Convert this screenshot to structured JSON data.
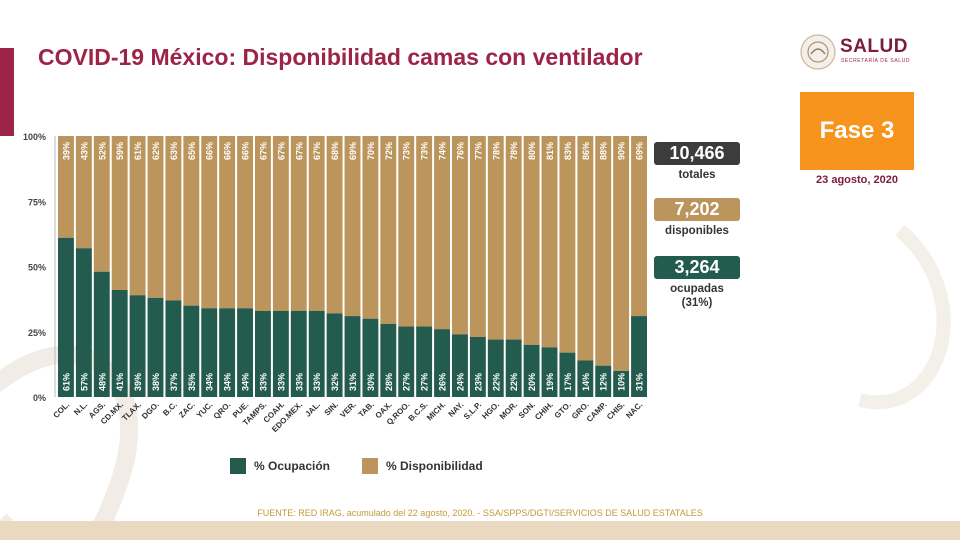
{
  "header": {
    "title": "COVID-19 México: Disponibilidad camas con ventilador",
    "logo_text": "SALUD",
    "logo_subtext": "SECRETARÍA DE SALUD"
  },
  "phase": {
    "label": "Fase 3",
    "date": "23 agosto, 2020"
  },
  "stats": {
    "total_value": "10,466",
    "total_label": "totales",
    "available_value": "7,202",
    "available_label": "disponibles",
    "occupied_value": "3,264",
    "occupied_label": "ocupadas",
    "occupied_pct": "(31%)"
  },
  "legend": {
    "occupied": "% Ocupación",
    "available": "% Disponibilidad"
  },
  "source": "FUENTE: RED IRAG, acumulado del 22 agosto, 2020. -  SSA/SPPS/DGTI/SERVICIOS DE SALUD ESTATALES",
  "colors": {
    "occupied": "#235b4e",
    "available": "#bc955c",
    "accent": "#9d2449",
    "phase": "#f7941d"
  },
  "chart_data": {
    "type": "bar",
    "stacked": true,
    "ylim": [
      0,
      100
    ],
    "yticks": [
      "0%",
      "25%",
      "50%",
      "75%",
      "100%"
    ],
    "categories": [
      "COL.",
      "N.L.",
      "AGS.",
      "CD.MX.",
      "TLAX.",
      "DGO.",
      "B.C.",
      "ZAC.",
      "YUC.",
      "QRO.",
      "PUE.",
      "TAMPS.",
      "COAH.",
      "EDO.MEX.",
      "JAL.",
      "SIN.",
      "VER.",
      "TAB.",
      "OAX.",
      "Q.ROO.",
      "B.C.S.",
      "MICH.",
      "NAY.",
      "S.L.P.",
      "HGO.",
      "MOR.",
      "SON.",
      "CHIH.",
      "GTO.",
      "GRO.",
      "CAMP.",
      "CHIS.",
      "NAC."
    ],
    "series": [
      {
        "name": "% Ocupación",
        "values": [
          61,
          57,
          48,
          41,
          39,
          38,
          37,
          35,
          34,
          34,
          34,
          33,
          33,
          33,
          33,
          32,
          31,
          30,
          28,
          27,
          27,
          26,
          24,
          23,
          22,
          22,
          20,
          19,
          17,
          14,
          12,
          10,
          31
        ]
      },
      {
        "name": "% Disponibilidad",
        "values": [
          39,
          43,
          52,
          59,
          61,
          62,
          63,
          65,
          66,
          66,
          66,
          67,
          67,
          67,
          67,
          68,
          69,
          70,
          72,
          73,
          73,
          74,
          76,
          77,
          78,
          78,
          80,
          81,
          83,
          86,
          88,
          90,
          69
        ]
      }
    ]
  }
}
